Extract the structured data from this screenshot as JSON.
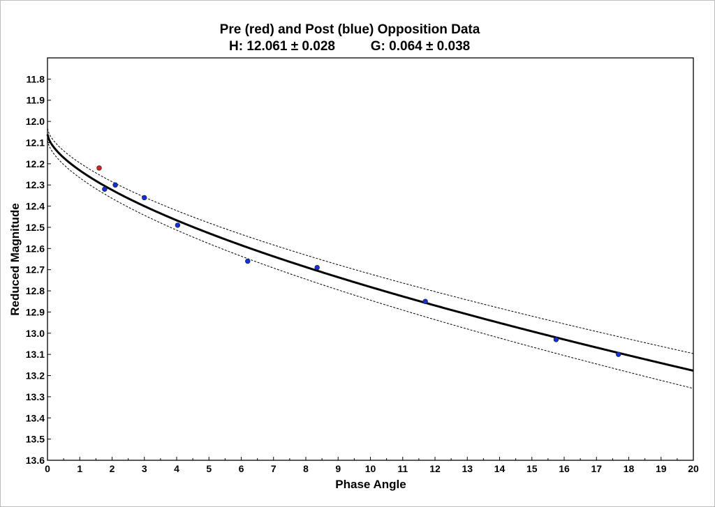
{
  "chart_data": {
    "type": "scatter",
    "title": "Pre (red) and Post (blue) Opposition Data",
    "subtitle_h": "H: 12.061 ± 0.028",
    "subtitle_g": "G: 0.064 ± 0.038",
    "xlabel": "Phase Angle",
    "ylabel": "Reduced Magnitude",
    "xlim": [
      0,
      20
    ],
    "ylim": [
      13.6,
      11.7
    ],
    "y_axis_inverted": true,
    "grid": false,
    "x_ticks": [
      0,
      1,
      2,
      3,
      4,
      5,
      6,
      7,
      8,
      9,
      10,
      11,
      12,
      13,
      14,
      15,
      16,
      17,
      18,
      19,
      20
    ],
    "y_ticks": [
      "11.8",
      "11.9",
      "12.0",
      "12.1",
      "12.2",
      "12.3",
      "12.4",
      "12.5",
      "12.6",
      "12.7",
      "12.8",
      "12.9",
      "13.0",
      "13.1",
      "13.2",
      "13.3",
      "13.4",
      "13.5",
      "13.6"
    ],
    "model": {
      "name": "H-G phase curve",
      "H": 12.061,
      "H_err": 0.028,
      "G": 0.064,
      "G_err": 0.038,
      "line_color": "#000000",
      "band_style": "dashed"
    },
    "series": [
      {
        "name": "Pre (red)",
        "color": "#d42020",
        "points": [
          {
            "x": 1.6,
            "y": 12.22
          }
        ]
      },
      {
        "name": "Post (blue)",
        "color": "#1430d8",
        "points": [
          {
            "x": 1.77,
            "y": 12.32
          },
          {
            "x": 2.1,
            "y": 12.3
          },
          {
            "x": 3.0,
            "y": 12.36
          },
          {
            "x": 4.03,
            "y": 12.49
          },
          {
            "x": 6.2,
            "y": 12.66
          },
          {
            "x": 8.35,
            "y": 12.69
          },
          {
            "x": 11.7,
            "y": 12.85
          },
          {
            "x": 15.75,
            "y": 13.03
          },
          {
            "x": 17.68,
            "y": 13.1
          }
        ]
      }
    ]
  }
}
